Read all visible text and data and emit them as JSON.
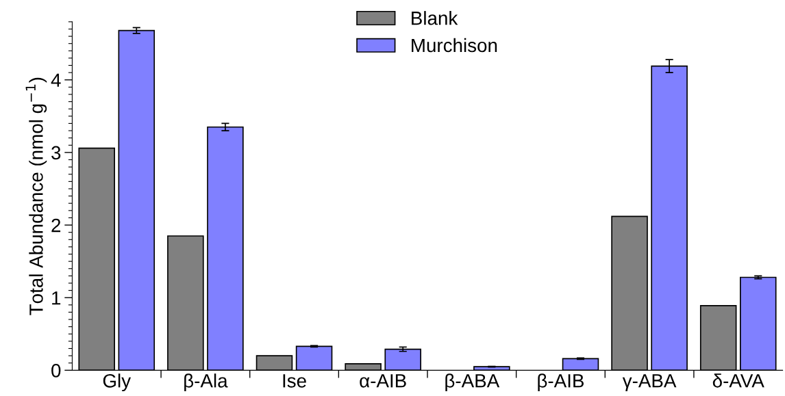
{
  "chart_data": {
    "type": "bar",
    "ylabel": "Total Abundance (nmol g$^{−1}$)",
    "categories": [
      "Gly",
      "β-Ala",
      "Ise",
      "α-AIB",
      "β-ABA",
      "β-AIB",
      "γ-ABA",
      "δ-AVA"
    ],
    "series": [
      {
        "name": "Blank",
        "color": "#808080",
        "values": [
          3.06,
          1.85,
          0.2,
          0.09,
          null,
          null,
          2.12,
          0.89
        ]
      },
      {
        "name": "Murchison",
        "color": "#8080ff",
        "values": [
          4.68,
          3.35,
          0.33,
          0.29,
          0.05,
          0.16,
          4.19,
          1.28
        ],
        "errors": [
          0.04,
          0.05,
          0.01,
          0.03,
          0.005,
          0.01,
          0.09,
          0.02
        ]
      }
    ],
    "ylim": [
      0,
      4.8
    ],
    "yticks": [
      0,
      1,
      2,
      3,
      4
    ],
    "grid": false,
    "legend": "top"
  }
}
